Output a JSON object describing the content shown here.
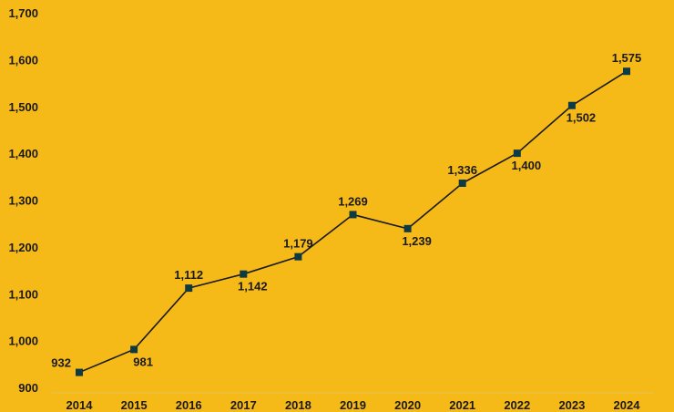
{
  "chart_data": {
    "type": "line",
    "title": "",
    "xlabel": "",
    "ylabel": "",
    "categories": [
      "2014",
      "2015",
      "2016",
      "2017",
      "2018",
      "2019",
      "2020",
      "2021",
      "2022",
      "2023",
      "2024"
    ],
    "series": [
      {
        "values": [
          932,
          981,
          1112,
          1142,
          1179,
          1269,
          1239,
          1336,
          1400,
          1502,
          1575
        ],
        "data_labels": [
          "932",
          "981",
          "1,112",
          "1,142",
          "1,179",
          "1,269",
          "1,239",
          "1,336",
          "1,400",
          "1,502",
          "1,575"
        ],
        "label_side": [
          "left",
          "below",
          "above",
          "below",
          "above",
          "above",
          "below",
          "above",
          "below",
          "below",
          "above"
        ]
      }
    ],
    "ylim": [
      900,
      1700
    ],
    "yticks": [
      900,
      1000,
      1100,
      1200,
      1300,
      1400,
      1500,
      1600,
      1700
    ],
    "ytick_labels": [
      "900",
      "1,000",
      "1,100",
      "1,200",
      "1,300",
      "1,400",
      "1,500",
      "1,600",
      "1,700"
    ],
    "grid": false,
    "legend": "none",
    "colors": {
      "background": "#f5b918",
      "line": "#1a1a1a",
      "marker": "#0e3b43",
      "text": "#1a1a1a"
    },
    "marker": "square"
  }
}
